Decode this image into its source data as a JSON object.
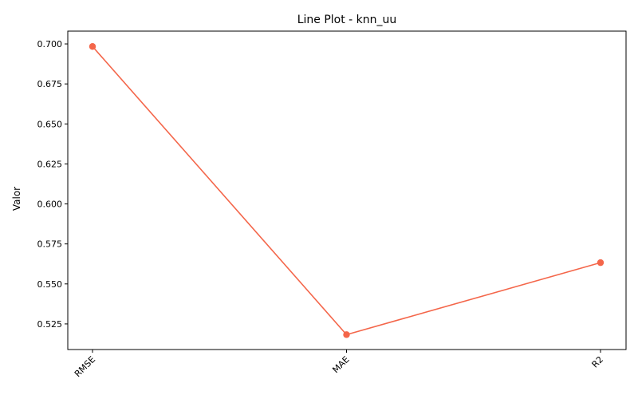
{
  "chart_data": {
    "type": "line",
    "title": "Line Plot - knn_uu",
    "xlabel": "",
    "ylabel": "Valor",
    "categories": [
      "RMSE",
      "MAE",
      "R2"
    ],
    "series": [
      {
        "values": [
          0.6984,
          0.5183,
          0.5633
        ],
        "color": "#f4664a",
        "marker": "circle"
      }
    ],
    "ylim": [
      0.509,
      0.708
    ],
    "yticks": [
      "0.525",
      "0.550",
      "0.575",
      "0.600",
      "0.625",
      "0.650",
      "0.675",
      "0.700"
    ],
    "xtick_rotation": 45,
    "grid": false,
    "legend": "none"
  }
}
